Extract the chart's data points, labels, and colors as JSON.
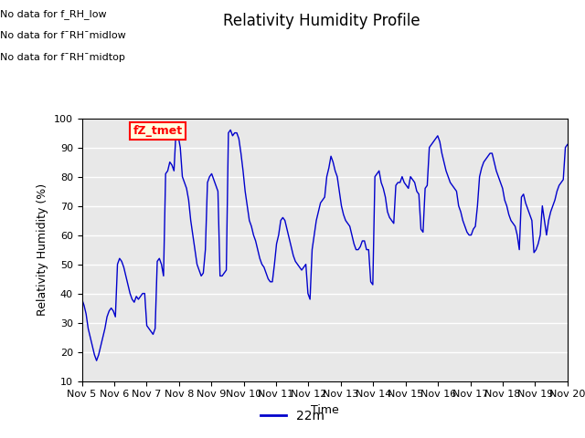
{
  "title": "Relativity Humidity Profile",
  "xlabel": "Time",
  "ylabel": "Relativity Humidity (%)",
  "ylim": [
    10,
    100
  ],
  "yticks": [
    10,
    20,
    30,
    40,
    50,
    60,
    70,
    80,
    90,
    100
  ],
  "xtick_labels": [
    "Nov 5",
    "Nov 6",
    "Nov 7",
    "Nov 8",
    "Nov 9",
    "Nov 10",
    "Nov 11",
    "Nov 12",
    "Nov 13",
    "Nov 14",
    "Nov 15",
    "Nov 16",
    "Nov 17",
    "Nov 18",
    "Nov 19",
    "Nov 20"
  ],
  "line_color": "#0000cc",
  "line_label": "22m",
  "legend_text_lines": [
    "No data for f_RH_low",
    "No data for f¯RH¯midlow",
    "No data for f¯RH¯midtop"
  ],
  "legend_box_label": "fZ_tmet",
  "bg_color": "#e8e8e8",
  "grid_color": "#ffffff",
  "title_fontsize": 12,
  "axis_fontsize": 9,
  "tick_fontsize": 8,
  "humidity_values": [
    38,
    36,
    33,
    28,
    25,
    22,
    19,
    17,
    19,
    22,
    25,
    28,
    32,
    34,
    35,
    34,
    32,
    50,
    52,
    51,
    49,
    46,
    43,
    40,
    38,
    37,
    39,
    38,
    39,
    40,
    40,
    29,
    28,
    27,
    26,
    28,
    51,
    52,
    50,
    46,
    81,
    82,
    85,
    84,
    82,
    96,
    94,
    90,
    80,
    78,
    76,
    72,
    65,
    60,
    55,
    50,
    48,
    46,
    47,
    55,
    78,
    80,
    81,
    79,
    77,
    75,
    46,
    46,
    47,
    48,
    95,
    96,
    94,
    95,
    95,
    93,
    88,
    82,
    75,
    70,
    65,
    63,
    60,
    58,
    55,
    52,
    50,
    49,
    47,
    45,
    44,
    44,
    50,
    57,
    60,
    65,
    66,
    65,
    62,
    59,
    56,
    53,
    51,
    50,
    49,
    48,
    49,
    50,
    40,
    38,
    55,
    60,
    65,
    68,
    71,
    72,
    73,
    80,
    83,
    87,
    85,
    82,
    80,
    75,
    70,
    67,
    65,
    64,
    63,
    60,
    57,
    55,
    55,
    56,
    58,
    58,
    55,
    55,
    44,
    43,
    80,
    81,
    82,
    78,
    76,
    73,
    68,
    66,
    65,
    64,
    77,
    78,
    78,
    80,
    78,
    77,
    76,
    80,
    79,
    78,
    75,
    74,
    62,
    61,
    76,
    77,
    90,
    91,
    92,
    93,
    94,
    92,
    88,
    85,
    82,
    80,
    78,
    77,
    76,
    75,
    70,
    68,
    65,
    63,
    61,
    60,
    60,
    62,
    63,
    70,
    80,
    83,
    85,
    86,
    87,
    88,
    88,
    85,
    82,
    80,
    78,
    76,
    72,
    70,
    67,
    65,
    64,
    63,
    60,
    55,
    73,
    74,
    71,
    69,
    67,
    65,
    54,
    55,
    57,
    60,
    70,
    65,
    60,
    65,
    68,
    70,
    72,
    75,
    77,
    78,
    79,
    90,
    91
  ]
}
